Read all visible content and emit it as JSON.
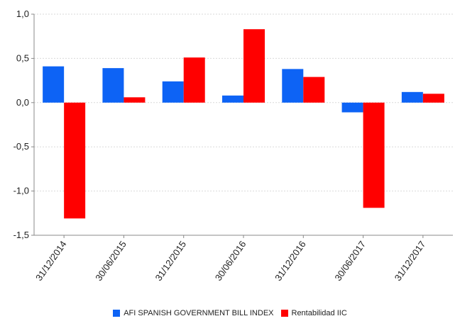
{
  "chart_data": {
    "type": "bar",
    "title": "",
    "xlabel": "",
    "ylabel": "",
    "categories": [
      "31/12/2014",
      "30/06/2015",
      "31/12/2015",
      "30/06/2016",
      "31/12/2016",
      "30/06/2017",
      "31/12/2017"
    ],
    "series": [
      {
        "name": "AFI SPANISH GOVERNMENT BILL INDEX",
        "color": "#0d63f5",
        "values": [
          0.41,
          0.39,
          0.24,
          0.08,
          0.38,
          -0.11,
          0.12
        ]
      },
      {
        "name": "Rentabilidad IIC",
        "color": "#ff0000",
        "values": [
          -1.31,
          0.06,
          0.51,
          0.83,
          0.29,
          -1.19,
          0.1
        ]
      }
    ],
    "ylim": [
      -1.5,
      1.0
    ],
    "yticks": [
      1.0,
      0.5,
      0.0,
      -0.5,
      -1.0,
      -1.5
    ],
    "ytick_labels": [
      "1,0",
      "0,5",
      "0,0",
      "-0,5",
      "-1,0",
      "-1,5"
    ],
    "grid": true,
    "legend_position": "bottom"
  }
}
